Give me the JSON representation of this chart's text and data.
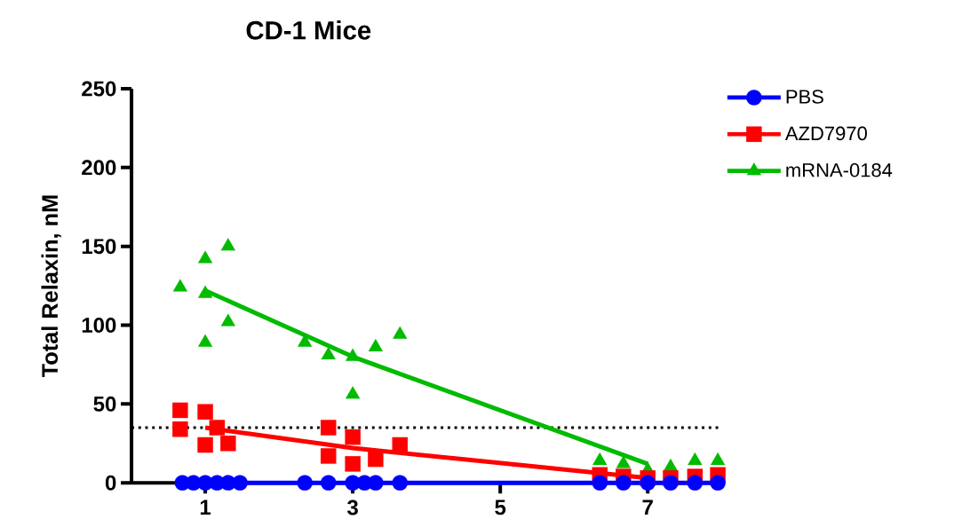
{
  "chart_data": {
    "type": "scatter",
    "title": "CD-1 Mice",
    "ylabel": "Total Relaxin, nM",
    "xlim": [
      0,
      8
    ],
    "xticks": [
      1,
      3,
      5,
      7
    ],
    "ylim": [
      0,
      250
    ],
    "yticks": [
      0,
      50,
      100,
      150,
      200,
      250
    ],
    "legend": "top right",
    "grid": false,
    "ref_lines": [
      {
        "axis": "y",
        "value": 35,
        "line_style": "dotted",
        "color": "#000000"
      }
    ],
    "series": [
      {
        "name": "PBS",
        "type": "line",
        "color": "#0000ff",
        "marker": "circle",
        "x": [
          0.69,
          0.84,
          1.0,
          1.16,
          1.31,
          1.47,
          2.35,
          2.67,
          3.0,
          3.16,
          3.31,
          3.64,
          6.35,
          6.67,
          7.0,
          7.31,
          7.64,
          7.95
        ],
        "values": [
          0,
          0,
          0,
          0,
          0,
          0,
          0,
          0,
          0,
          0,
          0,
          0,
          0,
          0,
          0,
          0,
          0,
          0
        ]
      },
      {
        "name": "AZD7970",
        "color": "#ff0000",
        "marker": "square",
        "x": [
          0.66,
          0.66,
          1.0,
          1.0,
          1.16,
          1.31,
          2.67,
          2.67,
          3.0,
          3.0,
          3.31,
          3.64,
          6.35,
          6.67,
          7.0,
          7.31,
          7.64,
          7.95
        ],
        "values": [
          46,
          34,
          45,
          24,
          35,
          25,
          35,
          17,
          29,
          12,
          15,
          24,
          5,
          4,
          3,
          3,
          4,
          5
        ]
      },
      {
        "type": "line",
        "color": "#ff0000",
        "marker": "none",
        "x": [
          1,
          3,
          7
        ],
        "values": [
          35,
          22,
          3
        ]
      },
      {
        "name": "mRNA-0184",
        "color": "#00bb00",
        "marker": "triangle",
        "x": [
          0.66,
          1.0,
          1.0,
          1.0,
          1.31,
          1.31,
          2.35,
          2.67,
          3.0,
          3.0,
          3.31,
          3.64,
          6.35,
          6.67,
          7.0,
          7.31,
          7.64,
          7.95
        ],
        "values": [
          124,
          142,
          120,
          89,
          150,
          102,
          89,
          81,
          80,
          56,
          86,
          94,
          14,
          12,
          8,
          10,
          14,
          14
        ]
      },
      {
        "type": "line",
        "color": "#00bb00",
        "marker": "none",
        "x": [
          1,
          3,
          7
        ],
        "values": [
          122,
          80,
          12
        ]
      }
    ]
  }
}
